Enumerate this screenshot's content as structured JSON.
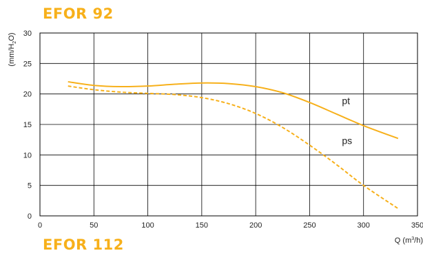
{
  "page_title": "EFOR 92",
  "next_title_partial": "EFOR 112",
  "chart_data": {
    "type": "line",
    "title": "EFOR 92",
    "xlabel": "Q (m³/h)",
    "xlabel_parts": {
      "main": "Q (m",
      "sup": "3",
      "end": "/h)"
    },
    "ylabel": "(mm/H₂O)",
    "ylabel_parts": {
      "main": "(mm/H",
      "sub": "2",
      "end": "O)"
    },
    "xlim": [
      0,
      350
    ],
    "ylim": [
      0,
      30
    ],
    "xticks": [
      0,
      50,
      100,
      150,
      200,
      250,
      300,
      350
    ],
    "yticks": [
      0,
      5,
      10,
      15,
      20,
      25,
      30
    ],
    "grid": true,
    "colors": {
      "curve": "#f7b01a",
      "grid": "#000000",
      "title": "#f7b01a"
    },
    "series": [
      {
        "name": "pt",
        "style": "solid",
        "label_at": [
          280,
          18.3
        ],
        "x": [
          26,
          50,
          75,
          100,
          125,
          150,
          175,
          200,
          225,
          250,
          275,
          300,
          332
        ],
        "y": [
          22.0,
          21.4,
          21.2,
          21.3,
          21.6,
          21.8,
          21.7,
          21.2,
          20.2,
          18.6,
          16.7,
          14.8,
          12.7
        ]
      },
      {
        "name": "ps",
        "style": "dashed",
        "label_at": [
          280,
          11.8
        ],
        "x": [
          26,
          50,
          75,
          100,
          125,
          150,
          175,
          200,
          225,
          250,
          275,
          300,
          332
        ],
        "y": [
          21.3,
          20.7,
          20.3,
          20.1,
          19.9,
          19.4,
          18.4,
          16.8,
          14.5,
          11.6,
          8.4,
          5.0,
          1.2
        ]
      }
    ]
  }
}
